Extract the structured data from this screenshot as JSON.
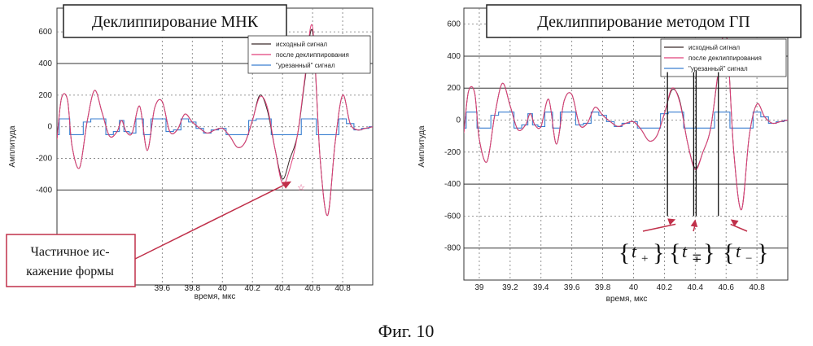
{
  "figure_caption": "Фиг. 10",
  "colors": {
    "original": "#3a2a2a",
    "declipped": "#e0407a",
    "clipped": "#3a7fd0",
    "annotation_arrow": "#c0304a",
    "grid": "#555555"
  },
  "chart_data": [
    {
      "type": "line",
      "title": "Деклиппирование МНК",
      "xlabel": "время, мкс",
      "ylabel": "Амплитуда",
      "xlim": [
        38.9,
        41.0
      ],
      "ylim": [
        -1000,
        750
      ],
      "xticks": [
        "39.6",
        "39.8",
        "40",
        "40.2",
        "40.4",
        "40.6",
        "40.8"
      ],
      "yticks": [
        "600",
        "400",
        "200",
        "0",
        "-200",
        "-400"
      ],
      "grid": true,
      "legend_position": "top-right",
      "clip_level": 50,
      "series": [
        {
          "name": "исходный сигнал",
          "color": "#3a2a2a",
          "x": [
            38.9,
            38.93,
            38.97,
            39.0,
            39.05,
            39.1,
            39.15,
            39.2,
            39.25,
            39.3,
            39.33,
            39.36,
            39.4,
            39.45,
            39.5,
            39.55,
            39.6,
            39.65,
            39.7,
            39.75,
            39.8,
            39.85,
            39.9,
            39.95,
            40.0,
            40.05,
            40.1,
            40.15,
            40.2,
            40.25,
            40.3,
            40.35,
            40.4,
            40.45,
            40.5,
            40.55,
            40.6,
            40.65,
            40.7,
            40.75,
            40.8,
            40.85,
            40.9,
            40.95,
            41.0
          ],
          "y": [
            -80,
            180,
            170,
            -120,
            -260,
            30,
            230,
            90,
            -60,
            -30,
            40,
            -30,
            -40,
            130,
            -150,
            120,
            160,
            -30,
            -20,
            80,
            30,
            -10,
            -40,
            -20,
            -10,
            -60,
            -130,
            -100,
            40,
            200,
            100,
            -140,
            -330,
            -200,
            -50,
            300,
            600,
            -200,
            -560,
            -100,
            200,
            20,
            -20,
            -10,
            0
          ]
        },
        {
          "name": "после деклиппирования",
          "color": "#e0407a",
          "x": [
            38.9,
            38.93,
            38.97,
            39.0,
            39.05,
            39.1,
            39.15,
            39.2,
            39.25,
            39.3,
            39.33,
            39.36,
            39.4,
            39.45,
            39.5,
            39.55,
            39.6,
            39.65,
            39.7,
            39.75,
            39.8,
            39.85,
            39.9,
            39.95,
            40.0,
            40.05,
            40.1,
            40.15,
            40.2,
            40.25,
            40.3,
            40.35,
            40.4,
            40.45,
            40.5,
            40.55,
            40.6,
            40.65,
            40.7,
            40.75,
            40.8,
            40.85,
            40.9,
            40.95,
            41.0
          ],
          "y": [
            -80,
            180,
            170,
            -120,
            -260,
            30,
            230,
            90,
            -60,
            -30,
            40,
            -30,
            -40,
            130,
            -150,
            120,
            160,
            -30,
            -20,
            80,
            30,
            -10,
            -40,
            -20,
            -10,
            -60,
            -130,
            -100,
            40,
            190,
            120,
            -140,
            -360,
            -260,
            -50,
            320,
            630,
            -200,
            -560,
            -100,
            200,
            20,
            -20,
            -10,
            0
          ]
        },
        {
          "name": "\"урезанный\" сигнал",
          "color": "#3a7fd0",
          "x": [
            38.9,
            38.93,
            38.97,
            39.0,
            39.05,
            39.1,
            39.15,
            39.2,
            39.25,
            39.3,
            39.33,
            39.36,
            39.4,
            39.45,
            39.5,
            39.55,
            39.6,
            39.65,
            39.7,
            39.75,
            39.8,
            39.85,
            39.9,
            39.95,
            40.0,
            40.05,
            40.1,
            40.15,
            40.2,
            40.25,
            40.3,
            40.35,
            40.4,
            40.45,
            40.5,
            40.55,
            40.6,
            40.65,
            40.7,
            40.75,
            40.8,
            40.85,
            40.9,
            40.95,
            41.0
          ],
          "y": [
            -50,
            50,
            50,
            -50,
            -50,
            30,
            50,
            50,
            -50,
            -30,
            40,
            -30,
            -40,
            50,
            -50,
            50,
            50,
            -30,
            -20,
            50,
            30,
            -10,
            -40,
            -20,
            -10,
            -50,
            -50,
            -50,
            40,
            50,
            50,
            -50,
            -50,
            -50,
            -50,
            50,
            50,
            -50,
            -50,
            -50,
            50,
            20,
            -20,
            -10,
            0
          ]
        }
      ],
      "annotation": {
        "text_line1": "Частичное ис-",
        "text_line2": "кажение формы",
        "target_x": 40.47,
        "target_y": -340
      }
    },
    {
      "type": "line",
      "title": "Деклиппирование методом ГП",
      "xlabel": "время, мкс",
      "ylabel": "Амплитуда",
      "xlim": [
        38.9,
        41.0
      ],
      "ylim": [
        -1000,
        700
      ],
      "xticks": [
        "39",
        "39.2",
        "39.4",
        "39.6",
        "39.8",
        "40",
        "40.2",
        "40.4",
        "40.6",
        "40.8"
      ],
      "yticks": [
        "600",
        "400",
        "200",
        "0",
        "-200",
        "-400",
        "-600",
        "-800"
      ],
      "grid": true,
      "legend_position": "top-right",
      "clip_level": 50,
      "series": [
        {
          "name": "исходный сигнал",
          "color": "#3a2a2a",
          "x": [
            38.9,
            38.93,
            38.97,
            39.0,
            39.05,
            39.1,
            39.15,
            39.2,
            39.25,
            39.3,
            39.33,
            39.36,
            39.4,
            39.45,
            39.5,
            39.55,
            39.6,
            39.65,
            39.7,
            39.75,
            39.8,
            39.85,
            39.9,
            39.95,
            40.0,
            40.05,
            40.1,
            40.15,
            40.2,
            40.25,
            40.3,
            40.35,
            40.4,
            40.45,
            40.5,
            40.55,
            40.6,
            40.65,
            40.7,
            40.75,
            40.8,
            40.85,
            40.9,
            40.95,
            41.0
          ],
          "y": [
            -80,
            180,
            170,
            -120,
            -260,
            30,
            230,
            90,
            -60,
            -30,
            40,
            -30,
            -40,
            130,
            -150,
            120,
            160,
            -30,
            -20,
            80,
            30,
            -10,
            -40,
            -20,
            -10,
            -60,
            -130,
            -100,
            40,
            190,
            120,
            -140,
            -300,
            -200,
            -50,
            300,
            560,
            -200,
            -560,
            -100,
            100,
            20,
            -20,
            -10,
            0
          ]
        },
        {
          "name": "после деклиппирования",
          "color": "#e0407a",
          "x": [
            38.9,
            38.93,
            38.97,
            39.0,
            39.05,
            39.1,
            39.15,
            39.2,
            39.25,
            39.3,
            39.33,
            39.36,
            39.4,
            39.45,
            39.5,
            39.55,
            39.6,
            39.65,
            39.7,
            39.75,
            39.8,
            39.85,
            39.9,
            39.95,
            40.0,
            40.05,
            40.1,
            40.15,
            40.2,
            40.25,
            40.3,
            40.35,
            40.4,
            40.45,
            40.5,
            40.55,
            40.6,
            40.65,
            40.7,
            40.75,
            40.8,
            40.85,
            40.9,
            40.95,
            41.0
          ],
          "y": [
            -80,
            180,
            170,
            -120,
            -260,
            30,
            230,
            90,
            -60,
            -30,
            40,
            -30,
            -40,
            130,
            -150,
            120,
            160,
            -30,
            -20,
            80,
            30,
            -10,
            -40,
            -20,
            -10,
            -60,
            -130,
            -100,
            40,
            200,
            110,
            -140,
            -310,
            -200,
            -50,
            310,
            560,
            -200,
            -560,
            -100,
            100,
            20,
            -20,
            -10,
            0
          ]
        },
        {
          "name": "\"урезанный\" сигнал",
          "color": "#3a7fd0",
          "x": [
            38.9,
            38.93,
            38.97,
            39.0,
            39.05,
            39.1,
            39.15,
            39.2,
            39.25,
            39.3,
            39.33,
            39.36,
            39.4,
            39.45,
            39.5,
            39.55,
            39.6,
            39.65,
            39.7,
            39.75,
            39.8,
            39.85,
            39.9,
            39.95,
            40.0,
            40.05,
            40.1,
            40.15,
            40.2,
            40.25,
            40.3,
            40.35,
            40.4,
            40.45,
            40.5,
            40.55,
            40.6,
            40.65,
            40.7,
            40.75,
            40.8,
            40.85,
            40.9,
            40.95,
            41.0
          ],
          "y": [
            -50,
            50,
            50,
            -50,
            -50,
            30,
            50,
            50,
            -50,
            -30,
            40,
            -30,
            -40,
            50,
            -50,
            50,
            50,
            -30,
            -20,
            50,
            30,
            -10,
            -40,
            -20,
            -10,
            -50,
            -50,
            -50,
            40,
            50,
            50,
            -50,
            -50,
            -50,
            -50,
            50,
            50,
            -50,
            -50,
            -50,
            50,
            20,
            -20,
            -10,
            0
          ]
        }
      ],
      "markers": [
        {
          "label_sub": "+",
          "x": 40.22,
          "target_y": -600
        },
        {
          "label_sub": "∓",
          "x": 40.39,
          "target_y": -600
        },
        {
          "label_sub": "−",
          "x": 40.55,
          "target_y": -600
        }
      ],
      "marker_letter": "t"
    }
  ]
}
